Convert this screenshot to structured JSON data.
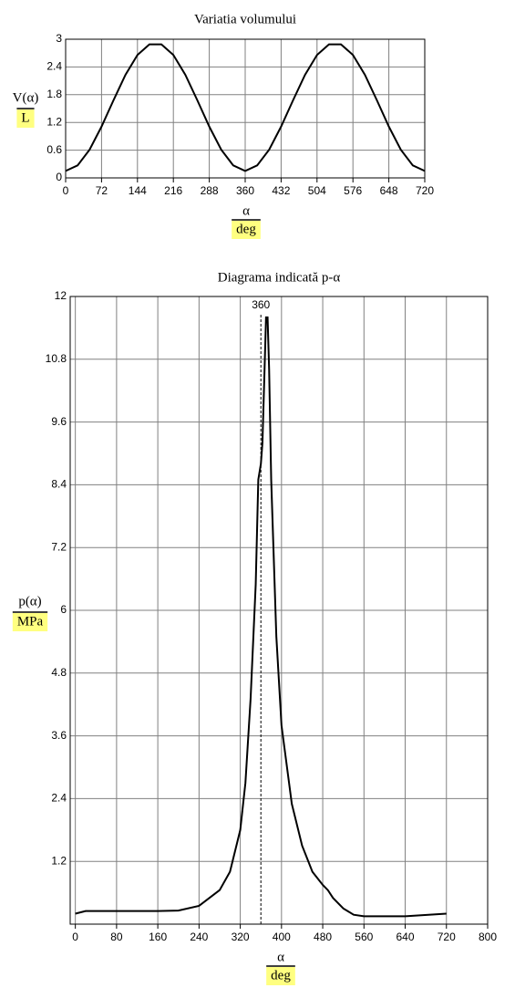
{
  "chart_data": [
    {
      "type": "line",
      "title": "Variatia volumului",
      "ylabel": "V(α)",
      "yunit": "L",
      "xlabel": "α",
      "xunit": "deg",
      "x": [
        0,
        24,
        48,
        72,
        96,
        120,
        144,
        168,
        192,
        216,
        240,
        264,
        288,
        312,
        336,
        360,
        384,
        408,
        432,
        456,
        480,
        504,
        528,
        552,
        576,
        600,
        624,
        648,
        672,
        696,
        720
      ],
      "values": [
        0.15,
        0.27,
        0.61,
        1.11,
        1.68,
        2.23,
        2.66,
        2.89,
        2.89,
        2.66,
        2.23,
        1.68,
        1.11,
        0.61,
        0.27,
        0.15,
        0.27,
        0.61,
        1.11,
        1.68,
        2.23,
        2.66,
        2.89,
        2.89,
        2.66,
        2.23,
        1.68,
        1.11,
        0.61,
        0.27,
        0.15
      ],
      "color": "#000000",
      "xlim": [
        0,
        720
      ],
      "xticks": [
        0,
        72,
        144,
        216,
        288,
        360,
        432,
        504,
        576,
        648,
        720
      ],
      "ylim": [
        0,
        3
      ],
      "yticks": [
        0,
        0.6,
        1.2,
        1.8,
        2.4,
        3
      ],
      "grid": true
    },
    {
      "type": "line",
      "title": "Diagrama indicată p-α",
      "ylabel": "p(α)",
      "yunit": "MPa",
      "xlabel": "α",
      "xunit": "deg",
      "x": [
        0,
        20,
        80,
        160,
        200,
        240,
        280,
        300,
        320,
        330,
        340,
        350,
        355,
        360,
        363,
        368,
        370,
        373,
        376,
        380,
        390,
        400,
        420,
        440,
        460,
        480,
        490,
        500,
        520,
        540,
        560,
        640,
        720
      ],
      "values": [
        0.2,
        0.25,
        0.25,
        0.25,
        0.26,
        0.35,
        0.65,
        1.0,
        1.8,
        2.7,
        4.3,
        6.5,
        8.5,
        8.8,
        9.2,
        10.9,
        11.6,
        11.6,
        10.6,
        8.5,
        5.5,
        3.8,
        2.3,
        1.5,
        1.0,
        0.75,
        0.65,
        0.5,
        0.3,
        0.18,
        0.15,
        0.15,
        0.2
      ],
      "color": "#000000",
      "xmarker": 360,
      "xlim": [
        -10,
        800
      ],
      "xticks": [
        0,
        80,
        160,
        240,
        320,
        400,
        480,
        560,
        640,
        720,
        800
      ],
      "ylim": [
        0,
        12
      ],
      "yticks": [
        1.2,
        2.4,
        3.6,
        4.8,
        6,
        7.2,
        8.4,
        9.6,
        10.8,
        12
      ],
      "grid": true
    }
  ]
}
